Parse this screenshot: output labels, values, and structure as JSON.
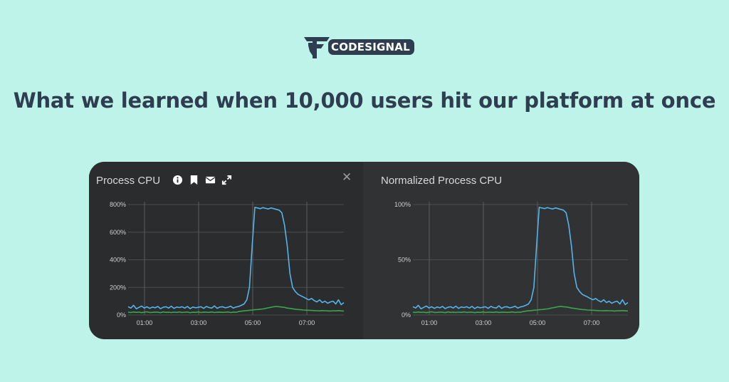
{
  "brand": {
    "name": "CODESIGNAL"
  },
  "headline": "What we learned when 10,000 users hit our platform at once",
  "colors": {
    "background": "#bdf3e8",
    "text": "#2e3d4f",
    "card": "#2c2e30",
    "series_cpu": "#56b4e9",
    "series_low": "#3aa64b"
  },
  "icons": [
    "info-icon",
    "bookmark-icon",
    "envelope-icon",
    "expand-icon",
    "close-icon"
  ],
  "chart_data": [
    {
      "type": "line",
      "title": "Process CPU",
      "y_ticks": [
        "0%",
        "200%",
        "400%",
        "600%",
        "800%"
      ],
      "ylim": [
        0,
        800
      ],
      "x_ticks": [
        "01:00",
        "03:00",
        "05:00",
        "07:00"
      ],
      "grid": true,
      "series": [
        {
          "color": "#56b4e9",
          "values": [
            60,
            50,
            70,
            45,
            55,
            65,
            50,
            60,
            48,
            58,
            52,
            62,
            46,
            56,
            60,
            50,
            64,
            48,
            58,
            54,
            60,
            50,
            62,
            46,
            58,
            52,
            56,
            60,
            48,
            62,
            54,
            50,
            66,
            48,
            58,
            60,
            52,
            56,
            64,
            50,
            58,
            62,
            70,
            80,
            110,
            200,
            500,
            780,
            775,
            770,
            778,
            772,
            768,
            776,
            770,
            765,
            760,
            740,
            650,
            500,
            300,
            200,
            170,
            150,
            140,
            130,
            120,
            110,
            120,
            105,
            95,
            110,
            90,
            100,
            85,
            95,
            100,
            80,
            110,
            75,
            90
          ]
        },
        {
          "color": "#3aa64b",
          "values": [
            20,
            18,
            22,
            19,
            21,
            17,
            20,
            23,
            18,
            19,
            21,
            20,
            17,
            22,
            19,
            20,
            18,
            21,
            19,
            22,
            18,
            20,
            21,
            17,
            20,
            19,
            22,
            18,
            21,
            20,
            19,
            22,
            18,
            20,
            21,
            19,
            20,
            22,
            18,
            21,
            20,
            25,
            28,
            30,
            32,
            34,
            36,
            38,
            40,
            42,
            44,
            48,
            52,
            56,
            60,
            62,
            60,
            58,
            55,
            50,
            48,
            45,
            42,
            40,
            38,
            36,
            35,
            34,
            33,
            32,
            31,
            30,
            32,
            31,
            30,
            29,
            31,
            30,
            32,
            30,
            29
          ]
        }
      ]
    },
    {
      "type": "line",
      "title": "Normalized Process CPU",
      "y_ticks": [
        "0%",
        "50%",
        "100%"
      ],
      "ylim": [
        0,
        100
      ],
      "x_ticks": [
        "01:00",
        "03:00",
        "05:00",
        "07:00"
      ],
      "grid": true,
      "series": [
        {
          "color": "#56b4e9",
          "values": [
            7.5,
            6.3,
            8.8,
            5.6,
            6.9,
            8.1,
            6.3,
            7.5,
            6.0,
            7.3,
            6.5,
            7.8,
            5.8,
            7.0,
            7.5,
            6.3,
            8.0,
            6.0,
            7.3,
            6.8,
            7.5,
            6.3,
            7.8,
            5.8,
            7.3,
            6.5,
            7.0,
            7.5,
            6.0,
            7.8,
            6.8,
            6.3,
            8.3,
            6.0,
            7.3,
            7.5,
            6.5,
            7.0,
            8.0,
            6.3,
            7.3,
            7.8,
            8.8,
            10,
            13.8,
            25,
            62.5,
            97.5,
            96.9,
            96.3,
            97.3,
            96.5,
            96,
            97,
            96.3,
            95.6,
            95,
            92.5,
            81.3,
            62.5,
            37.5,
            25,
            21.3,
            18.8,
            17.5,
            16.3,
            15,
            13.8,
            15,
            13.1,
            11.9,
            13.8,
            11.3,
            12.5,
            10.6,
            11.9,
            12.5,
            10,
            13.8,
            9.4,
            11.3
          ]
        },
        {
          "color": "#3aa64b",
          "values": [
            2.5,
            2.3,
            2.8,
            2.4,
            2.6,
            2.1,
            2.5,
            2.9,
            2.3,
            2.4,
            2.6,
            2.5,
            2.1,
            2.8,
            2.4,
            2.5,
            2.3,
            2.6,
            2.4,
            2.8,
            2.3,
            2.5,
            2.6,
            2.1,
            2.5,
            2.4,
            2.8,
            2.3,
            2.6,
            2.5,
            2.4,
            2.8,
            2.3,
            2.5,
            2.6,
            2.4,
            2.5,
            2.8,
            2.3,
            2.6,
            2.5,
            3.1,
            3.5,
            3.8,
            4,
            4.3,
            4.5,
            4.8,
            5,
            5.3,
            5.5,
            6,
            6.5,
            7,
            7.5,
            7.8,
            7.5,
            7.3,
            6.9,
            6.3,
            6,
            5.6,
            5.3,
            5,
            4.8,
            4.5,
            4.4,
            4.3,
            4.1,
            4,
            3.9,
            3.8,
            4,
            3.9,
            3.8,
            3.6,
            3.9,
            3.8,
            4,
            3.8,
            3.6
          ]
        }
      ]
    }
  ]
}
